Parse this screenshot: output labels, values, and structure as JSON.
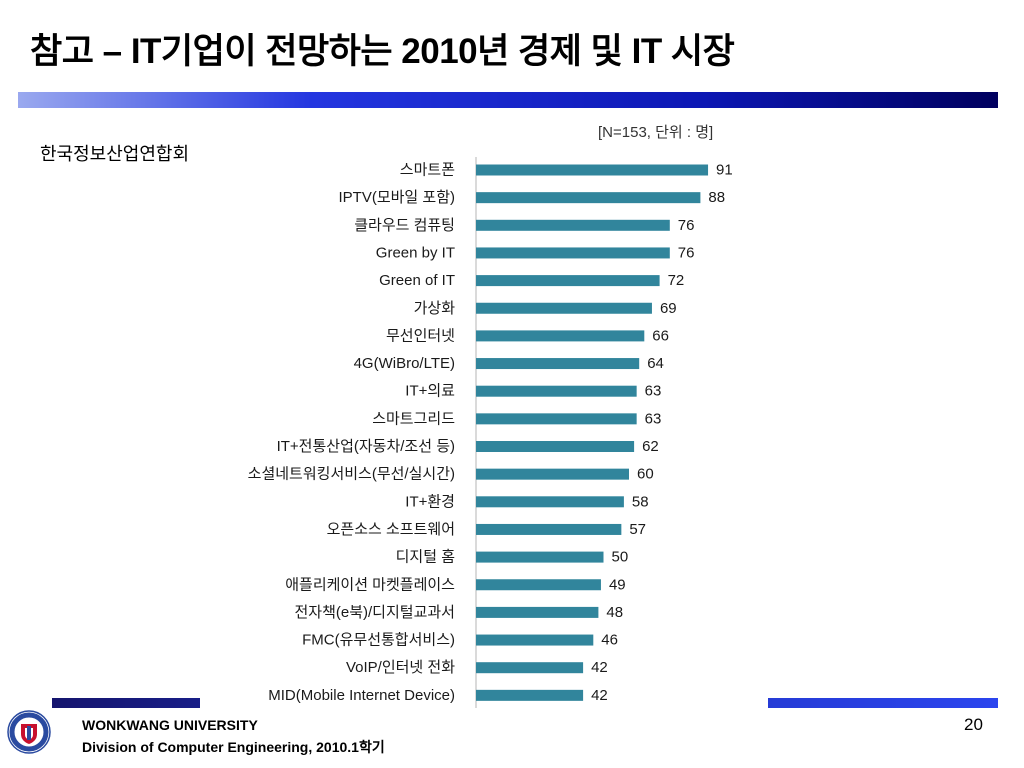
{
  "slide": {
    "title": "참고 – IT기업이 전망하는 2010년 경제 및 IT 시장",
    "source": "한국정보산업연합회",
    "page_number": "20"
  },
  "footer": {
    "university": "WONKWANG UNIVERSITY",
    "course": "Division of Computer Engineering, 2010.1학기"
  },
  "colors": {
    "bar": "#31859c",
    "header_bar_dark": "#00005e",
    "footer_bar": "#2b45ee"
  },
  "chart_data": {
    "type": "bar",
    "orientation": "horizontal",
    "title": "",
    "note": "[N=153,  단위 : 명]",
    "xlabel": "",
    "ylabel": "",
    "grid": false,
    "legend": "none",
    "data_labels": true,
    "categories": [
      "스마트폰",
      "IPTV(모바일 포함)",
      "클라우드 컴퓨팅",
      "Green by IT",
      "Green of IT",
      "가상화",
      "무선인터넷",
      "4G(WiBro/LTE)",
      "IT+의료",
      "스마트그리드",
      "IT+전통산업(자동차/조선 등)",
      "소셜네트워킹서비스(무선/실시간)",
      "IT+환경",
      "오픈소스 소프트웨어",
      "디지털 홈",
      "애플리케이션 마켓플레이스",
      "전자책(e북)/디지털교과서",
      "FMC(유무선통합서비스)",
      "VoIP/인터넷 전화",
      "MID(Mobile Internet Device)"
    ],
    "values": [
      91,
      88,
      76,
      76,
      72,
      69,
      66,
      64,
      63,
      63,
      62,
      60,
      58,
      57,
      50,
      49,
      48,
      46,
      42,
      42
    ]
  }
}
